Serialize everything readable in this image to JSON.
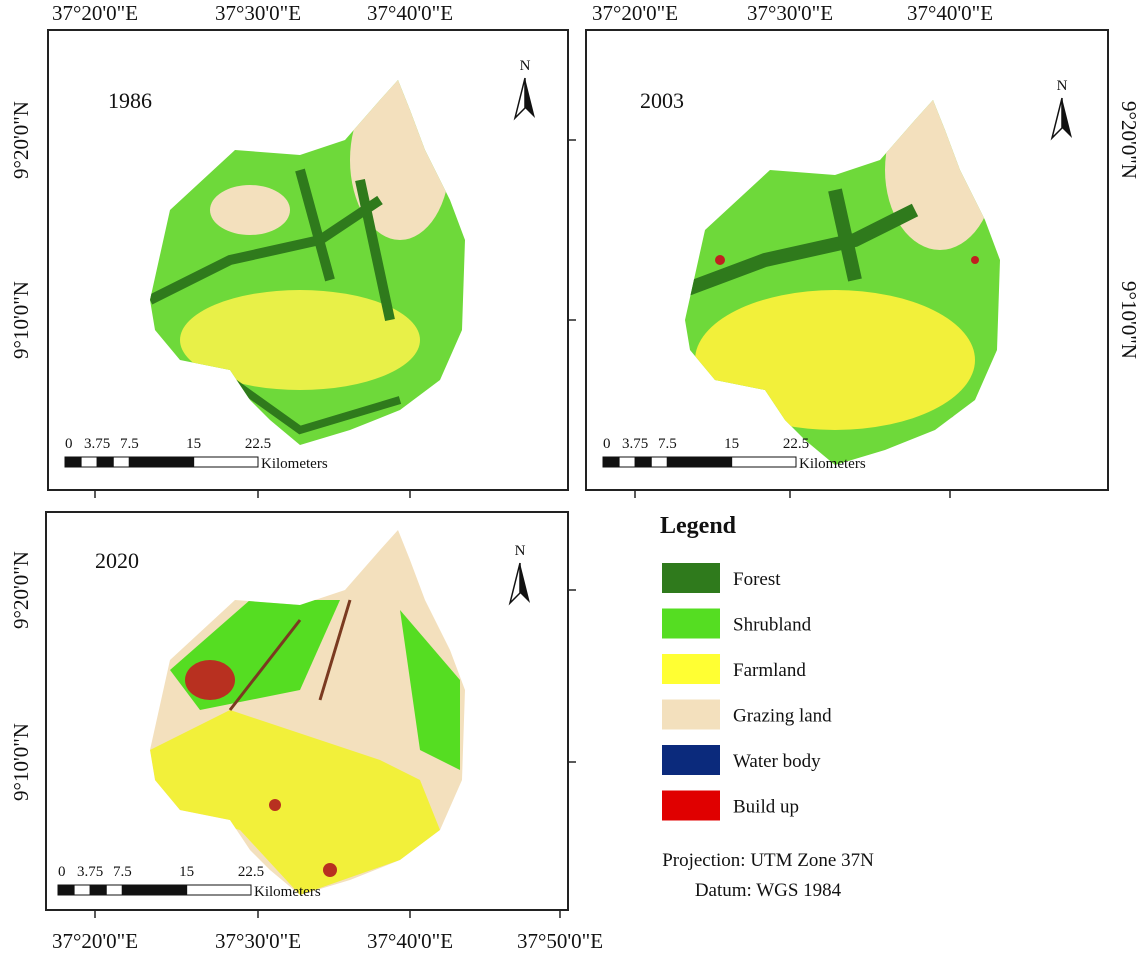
{
  "panels": [
    {
      "year": "1986",
      "top": [
        "37°20'0\"E",
        "37°30'0\"E",
        "37°40'0\"E"
      ],
      "left": [
        "9°20'0\"N",
        "9°10'0\"N"
      ]
    },
    {
      "year": "2003",
      "top": [
        "37°20'0\"E",
        "37°30'0\"E",
        "37°40'0\"E"
      ],
      "right": [
        "9°20'0\"N",
        "9°10'0\"N"
      ]
    },
    {
      "year": "2020",
      "left": [
        "9°20'0\"N",
        "9°10'0\"N"
      ],
      "bottom": [
        "37°20'0\"E",
        "37°30'0\"E",
        "37°40'0\"E",
        "37°50'0\"E"
      ]
    }
  ],
  "north": "N",
  "scale_bar": {
    "ticks": [
      "0",
      "3.75",
      "7.5",
      "15",
      "22.5"
    ],
    "unit": "Kilometers"
  },
  "legend": {
    "title": "Legend",
    "items": [
      {
        "name": "Forest",
        "color": "#2f7a1c"
      },
      {
        "name": "Shrubland",
        "color": "#55dd22"
      },
      {
        "name": "Farmland",
        "color": "#ffff33"
      },
      {
        "name": "Grazing land",
        "color": "#f3e0bd"
      },
      {
        "name": "Water body",
        "color": "#0b2a7c"
      },
      {
        "name": "Build up",
        "color": "#e00000"
      }
    ]
  },
  "projection": "Projection: UTM Zone 37N",
  "datum": "Datum: WGS 1984"
}
